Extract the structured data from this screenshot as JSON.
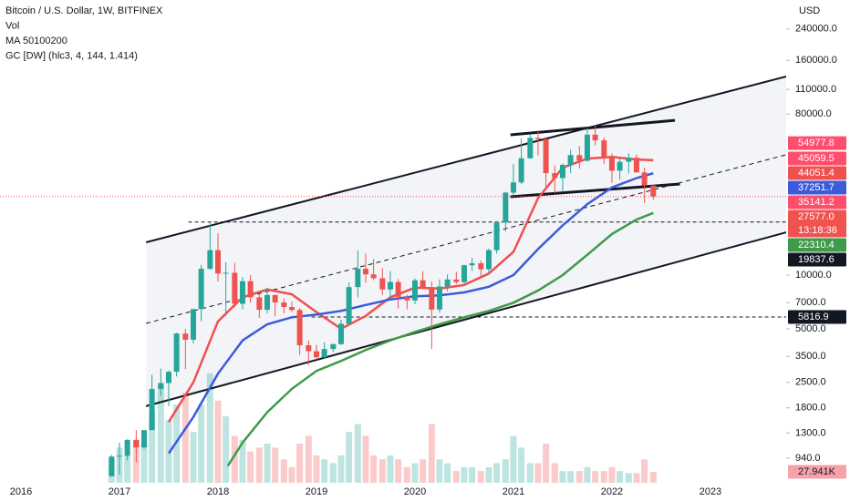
{
  "chart_data": {
    "type": "candlestick",
    "legend_lines": [
      "Bitcoin / U.S. Dollar, 1W, BITFINEX",
      "Vol",
      "MA 50100200",
      "GC [DW] (hlc3, 4, 144, 1.414)"
    ],
    "currency": "USD",
    "log_scale": true,
    "up_color": "#26a69a",
    "down_color": "#ef5350",
    "xlim": [
      2015.787,
      2023.769
    ],
    "xticks": [
      2016,
      2017,
      2018,
      2019,
      2020,
      2021,
      2022,
      2023
    ],
    "ylim": [
      684,
      349000
    ],
    "yticks": [
      {
        "value": 240000,
        "label": "240000.0"
      },
      {
        "value": 160000,
        "label": "160000.0"
      },
      {
        "value": 110000,
        "label": "110000.0"
      },
      {
        "value": 80000,
        "label": "80000.0"
      },
      {
        "value": 10000,
        "label": "10000.0"
      },
      {
        "value": 7000,
        "label": "7000.0"
      },
      {
        "value": 5000,
        "label": "5000.0"
      },
      {
        "value": 3500,
        "label": "3500.0"
      },
      {
        "value": 2500,
        "label": "2500.0"
      },
      {
        "value": 1800,
        "label": "1800.0"
      },
      {
        "value": 1300,
        "label": "1300.0"
      },
      {
        "value": 940,
        "label": "940.0"
      }
    ],
    "x": [
      2016.92,
      2017.0,
      2017.08,
      2017.17,
      2017.25,
      2017.33,
      2017.42,
      2017.5,
      2017.58,
      2017.67,
      2017.75,
      2017.83,
      2017.92,
      2018.0,
      2018.08,
      2018.17,
      2018.25,
      2018.33,
      2018.42,
      2018.5,
      2018.58,
      2018.67,
      2018.75,
      2018.83,
      2018.92,
      2019.0,
      2019.08,
      2019.17,
      2019.25,
      2019.33,
      2019.42,
      2019.5,
      2019.58,
      2019.67,
      2019.75,
      2019.83,
      2019.92,
      2020.0,
      2020.08,
      2020.17,
      2020.25,
      2020.33,
      2020.42,
      2020.5,
      2020.58,
      2020.67,
      2020.75,
      2020.83,
      2020.92,
      2021.0,
      2021.08,
      2021.17,
      2021.25,
      2021.33,
      2021.42,
      2021.5,
      2021.58,
      2021.67,
      2021.75,
      2021.83,
      2021.92,
      2022.0,
      2022.08,
      2022.17,
      2022.25,
      2022.33,
      2022.42
    ],
    "open": [
      745,
      960,
      970,
      1190,
      1080,
      1350,
      2300,
      2480,
      2870,
      4700,
      4340,
      6450,
      10850,
      13800,
      10200,
      10300,
      6900,
      9240,
      7500,
      6390,
      7730,
      7020,
      6620,
      6370,
      4040,
      3740,
      3460,
      3850,
      4100,
      5330,
      8560,
      10850,
      10090,
      9600,
      8300,
      9150,
      7550,
      7200,
      9350,
      8540,
      6410,
      8630,
      9450,
      9140,
      11350,
      11650,
      10780,
      13800,
      19700,
      28990,
      33100,
      45200,
      58800,
      57800,
      37300,
      35000,
      41500,
      47100,
      43800,
      61300,
      57000,
      46200,
      38500,
      43200,
      45500,
      37650,
      31800
    ],
    "high": [
      980,
      1150,
      1200,
      1350,
      1350,
      2760,
      2990,
      2920,
      4750,
      5000,
      6470,
      11400,
      19800,
      17200,
      11800,
      11700,
      9750,
      10000,
      7770,
      8500,
      7760,
      7410,
      7100,
      6550,
      4300,
      4060,
      4200,
      4120,
      5620,
      9090,
      13800,
      13200,
      12330,
      10950,
      10540,
      9510,
      7750,
      9580,
      10500,
      9190,
      9460,
      10080,
      10400,
      11450,
      12480,
      12050,
      14100,
      19900,
      29300,
      41950,
      58350,
      61800,
      64850,
      59500,
      41300,
      42300,
      50500,
      52950,
      67000,
      69000,
      59100,
      47990,
      45850,
      48200,
      47500,
      40000,
      31900
    ],
    "low": [
      740,
      760,
      915,
      890,
      1060,
      1350,
      2100,
      1840,
      2700,
      2970,
      4130,
      5500,
      10700,
      9200,
      5900,
      6600,
      6430,
      7000,
      5750,
      6100,
      5880,
      6100,
      6200,
      3560,
      3120,
      3350,
      3380,
      3700,
      4050,
      5330,
      7500,
      9060,
      9350,
      7710,
      7300,
      6500,
      6430,
      6870,
      8450,
      3850,
      6150,
      8100,
      8900,
      8900,
      10520,
      9880,
      10370,
      13200,
      17600,
      28100,
      32300,
      44900,
      47000,
      30000,
      28800,
      29300,
      37300,
      39600,
      43300,
      53300,
      42000,
      32900,
      34300,
      37150,
      37700,
      25400,
      26500
    ],
    "close": [
      960,
      970,
      1190,
      1080,
      1350,
      2300,
      2480,
      2870,
      4700,
      4340,
      6450,
      10850,
      13800,
      10200,
      10300,
      6900,
      9240,
      7500,
      6390,
      7730,
      7020,
      6620,
      6370,
      4040,
      3740,
      3460,
      3850,
      4100,
      5330,
      8560,
      10850,
      10090,
      9600,
      8300,
      9150,
      7550,
      7200,
      9350,
      8540,
      6410,
      8630,
      9450,
      9140,
      11350,
      11650,
      10780,
      13800,
      19700,
      28990,
      33100,
      45200,
      58800,
      57800,
      37300,
      35000,
      41500,
      47100,
      43800,
      61300,
      57000,
      46200,
      38500,
      43200,
      45500,
      37650,
      31800,
      27577
    ],
    "close_labels": [
      null,
      null,
      null,
      null,
      null,
      null,
      null,
      null,
      null,
      null,
      null,
      null,
      null,
      null,
      null,
      null,
      null,
      null,
      null,
      null,
      null,
      null,
      null,
      null,
      null,
      null,
      null,
      null,
      null,
      null,
      null,
      null,
      null,
      null,
      null,
      null,
      null,
      null,
      null,
      null,
      null,
      null,
      null,
      null,
      null,
      null,
      null,
      null,
      null,
      null,
      null,
      null,
      null,
      null,
      null,
      null,
      null,
      null,
      null,
      null,
      null,
      null,
      null,
      null,
      null,
      null,
      "27577.0"
    ],
    "countdown": "13:18:36",
    "volume": {
      "ylim": [
        0,
        326000
      ],
      "values": [
        60000,
        90000,
        70000,
        110000,
        100000,
        180000,
        250000,
        160000,
        200000,
        230000,
        130000,
        200000,
        280000,
        210000,
        170000,
        120000,
        110000,
        80000,
        90000,
        100000,
        90000,
        60000,
        40000,
        100000,
        120000,
        70000,
        60000,
        50000,
        70000,
        130000,
        150000,
        120000,
        70000,
        60000,
        70000,
        60000,
        40000,
        50000,
        60000,
        150000,
        60000,
        50000,
        30000,
        40000,
        40000,
        30000,
        40000,
        50000,
        60000,
        120000,
        90000,
        50000,
        50000,
        100000,
        50000,
        30000,
        30000,
        30000,
        40000,
        30000,
        30000,
        40000,
        30000,
        25000,
        25000,
        60000,
        27941
      ],
      "value_labels": [
        null,
        null,
        null,
        null,
        null,
        null,
        null,
        null,
        null,
        null,
        null,
        null,
        null,
        null,
        null,
        null,
        null,
        null,
        null,
        null,
        null,
        null,
        null,
        null,
        null,
        null,
        null,
        null,
        null,
        null,
        null,
        null,
        null,
        null,
        null,
        null,
        null,
        null,
        null,
        null,
        null,
        null,
        null,
        null,
        null,
        null,
        null,
        null,
        null,
        null,
        null,
        null,
        null,
        null,
        null,
        null,
        null,
        null,
        null,
        null,
        null,
        null,
        null,
        null,
        null,
        null,
        "27.941K"
      ],
      "label_color": "#f7a1a8"
    },
    "moving_averages": [
      {
        "color": "#f05050",
        "x": [
          2017.5,
          2017.75,
          2018.0,
          2018.25,
          2018.5,
          2018.75,
          2019.0,
          2019.25,
          2019.5,
          2019.75,
          2020.0,
          2020.25,
          2020.5,
          2020.75,
          2021.0,
          2021.25,
          2021.5,
          2021.75,
          2022.0,
          2022.25,
          2022.42
        ],
        "values": [
          1500,
          2500,
          5500,
          7500,
          8300,
          7800,
          6200,
          5000,
          5900,
          7500,
          8500,
          8400,
          8800,
          10200,
          13500,
          27000,
          40000,
          45000,
          46000,
          44500,
          44051.4
        ]
      },
      {
        "color": "#3b5bdb",
        "x": [
          2017.5,
          2017.75,
          2018.0,
          2018.25,
          2018.5,
          2018.75,
          2019.0,
          2019.25,
          2019.5,
          2019.75,
          2020.0,
          2020.25,
          2020.5,
          2020.75,
          2021.0,
          2021.25,
          2021.5,
          2021.75,
          2022.0,
          2022.25,
          2022.42
        ],
        "values": [
          1000,
          1600,
          2800,
          4300,
          5300,
          5800,
          6000,
          6300,
          6800,
          7300,
          7600,
          7700,
          8000,
          8600,
          10000,
          14000,
          19000,
          25000,
          31000,
          35000,
          37251.7
        ]
      },
      {
        "color": "#3f9a4a",
        "x": [
          2018.1,
          2018.25,
          2018.5,
          2018.75,
          2019.0,
          2019.25,
          2019.5,
          2019.75,
          2020.0,
          2020.25,
          2020.5,
          2020.75,
          2021.0,
          2021.25,
          2021.5,
          2021.75,
          2022.0,
          2022.25,
          2022.42
        ],
        "values": [
          850,
          1150,
          1700,
          2300,
          2900,
          3300,
          3800,
          4300,
          4800,
          5300,
          5800,
          6300,
          7000,
          8200,
          10000,
          13000,
          17000,
          20500,
          22310.4
        ]
      }
    ],
    "gc_band_color": "#ff4d6d",
    "gc_band_values": [
      54977.8,
      45059.5,
      35141.2
    ],
    "horizontal_lines": [
      {
        "from": 2017.7,
        "value": 19837.6
      },
      {
        "from": 2018.95,
        "value": 5816.9
      }
    ],
    "trendlines": [
      {
        "x": [
          2017.27,
          2023.77
        ],
        "y": [
          15270,
          130000
        ],
        "dashed": false
      },
      {
        "x": [
          2017.27,
          2023.77
        ],
        "y": [
          1840,
          17370
        ],
        "dashed": false
      },
      {
        "x": [
          2017.27,
          2023.77
        ],
        "y": [
          5360,
          47300
        ],
        "dashed": true
      },
      {
        "x": [
          2020.97,
          2022.64
        ],
        "y": [
          61200,
          73800
        ],
        "dashed": false
      },
      {
        "x": [
          2020.97,
          2022.69
        ],
        "y": [
          27500,
          32400
        ],
        "dashed": false
      }
    ]
  }
}
